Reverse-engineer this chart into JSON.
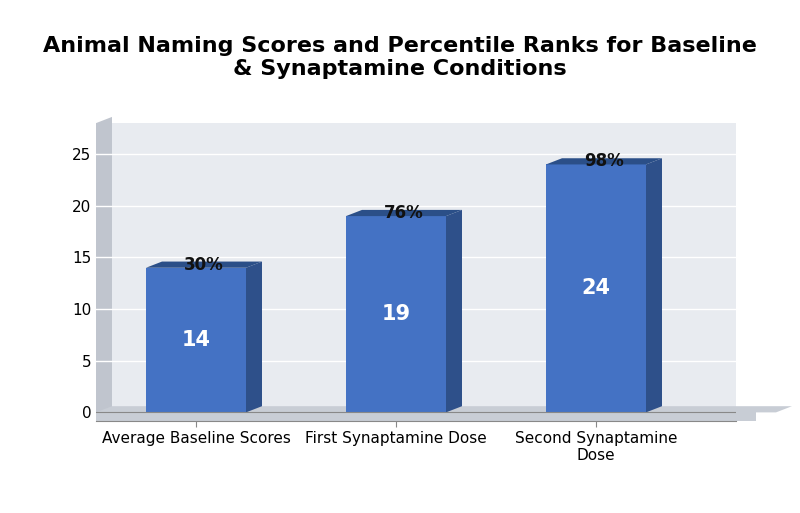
{
  "title": "Animal Naming Scores and Percentile Ranks for Baseline\n& Synaptamine Conditions",
  "categories": [
    "Average Baseline Scores",
    "First Synaptamine Dose",
    "Second Synaptamine\nDose"
  ],
  "values": [
    14,
    19,
    24
  ],
  "percentiles": [
    "30%",
    "76%",
    "98%"
  ],
  "bar_color_main": "#4472C4",
  "bar_color_right": "#2E508A",
  "bar_color_top": "#2B4F88",
  "bar_width": 0.5,
  "ylim": [
    0,
    28
  ],
  "yticks": [
    0,
    5,
    10,
    15,
    20,
    25
  ],
  "bg_white": "#FFFFFF",
  "plot_bg": "#E8EBF0",
  "floor_color": "#C8CDD5",
  "side_panel_color": "#C0C5CE",
  "grid_color": "#FFFFFF",
  "title_fontsize": 16,
  "axis_fontsize": 11,
  "tick_fontsize": 11,
  "value_fontsize": 15,
  "pct_fontsize": 12
}
